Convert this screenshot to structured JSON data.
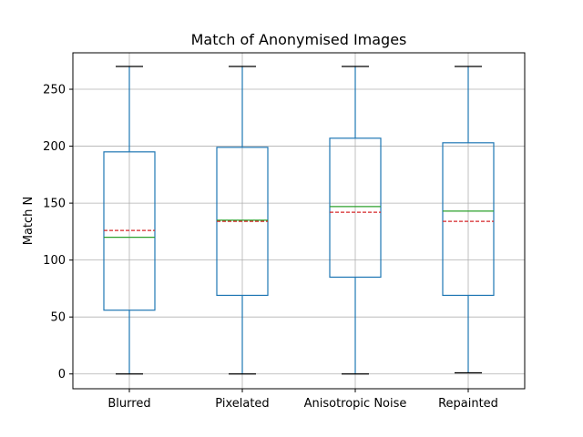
{
  "chart_data": {
    "type": "box",
    "title": "Match of Anonymised Images",
    "xlabel": "",
    "ylabel": "Match N",
    "ylim": [
      -13,
      282
    ],
    "yticks": [
      0,
      50,
      100,
      150,
      200,
      250
    ],
    "grid": true,
    "categories": [
      "Blurred",
      "Pixelated",
      "Anisotropic Noise",
      "Repainted"
    ],
    "boxes": [
      {
        "whisker_low": 0,
        "q1": 56,
        "median": 120,
        "mean": 126,
        "q3": 195,
        "whisker_high": 270
      },
      {
        "whisker_low": 0,
        "q1": 69,
        "median": 135,
        "mean": 134,
        "q3": 199,
        "whisker_high": 270
      },
      {
        "whisker_low": 0,
        "q1": 85,
        "median": 147,
        "mean": 142,
        "q3": 207,
        "whisker_high": 270
      },
      {
        "whisker_low": 1,
        "q1": 69,
        "median": 143,
        "mean": 134,
        "q3": 203,
        "whisker_high": 270
      }
    ],
    "colors": {
      "box": "#1f77b4",
      "whisker": "#1f77b4",
      "cap": "#000000",
      "median": "#2ca02c",
      "mean": "#d62728",
      "grid": "#b0b0b0",
      "axes": "#000000"
    }
  }
}
